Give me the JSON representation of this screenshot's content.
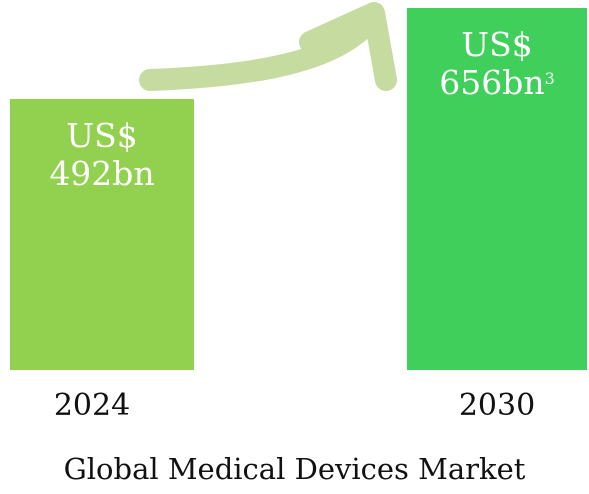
{
  "chart_data": {
    "type": "bar",
    "title": "Global Medical Devices Market",
    "categories": [
      "2024",
      "2030"
    ],
    "values": [
      492,
      656
    ],
    "value_labels": [
      "US$\n492bn",
      "US$\n656bn"
    ],
    "footnotes": [
      null,
      "3"
    ],
    "colors": [
      "#92d050",
      "#3fcf5a"
    ]
  }
}
